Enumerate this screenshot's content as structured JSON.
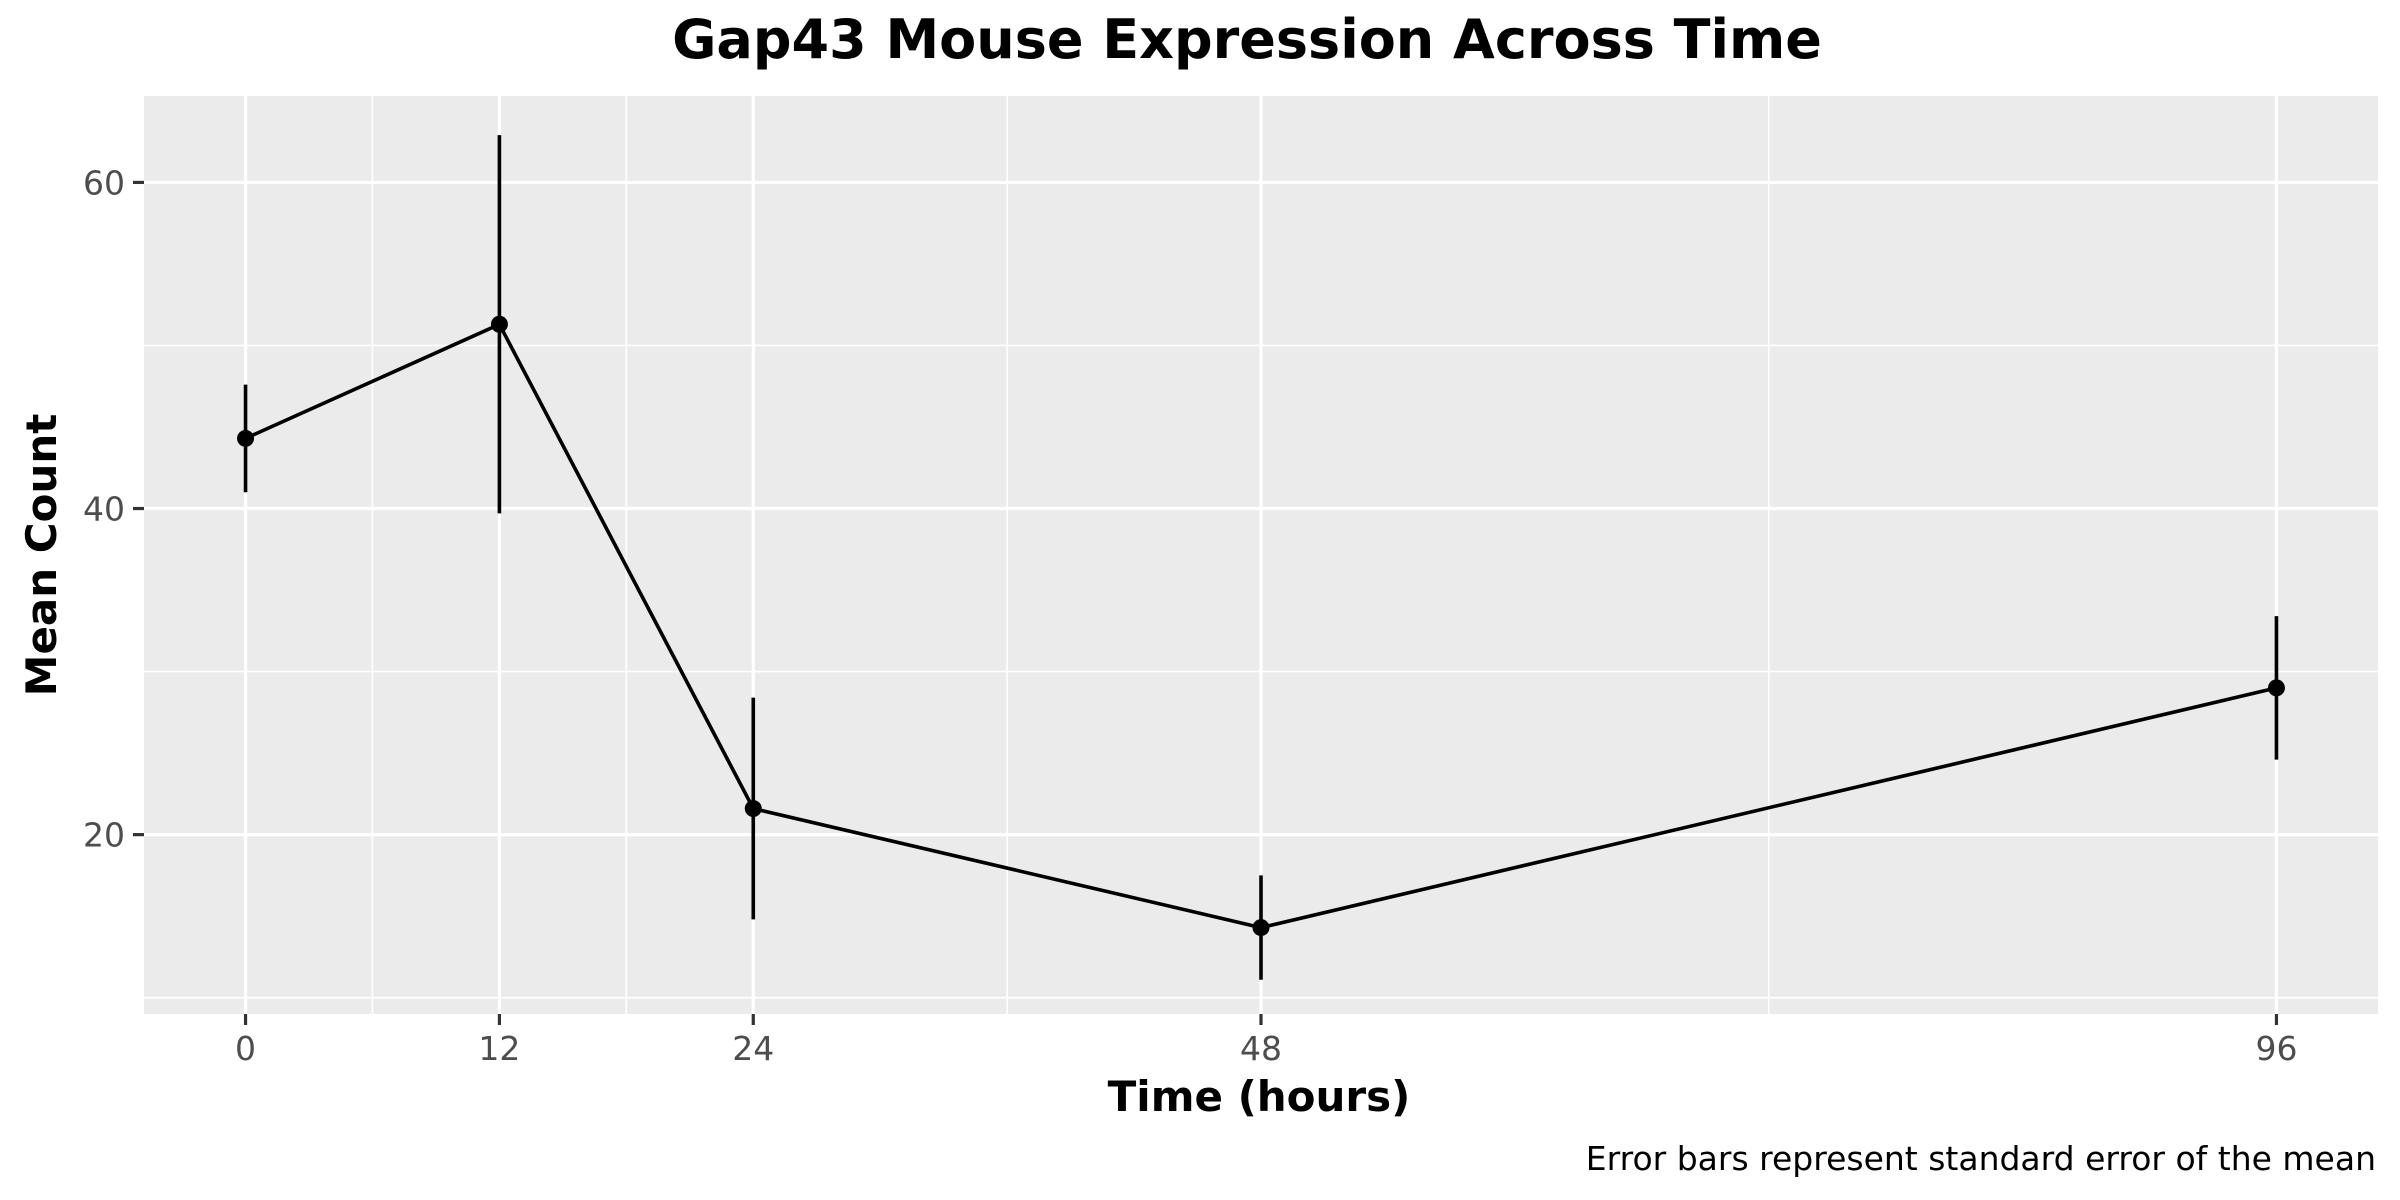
{
  "chart_data": {
    "type": "line",
    "title": "Gap43 Mouse Expression Across Time",
    "xlabel": "Time (hours)",
    "ylabel": "Mean Count",
    "caption": "Error bars represent standard error of the mean",
    "x_ticks": [
      "0",
      "12",
      "24",
      "48",
      "96"
    ],
    "y_ticks": [
      "20",
      "40",
      "60"
    ],
    "xlim": [
      -4.8,
      100.8
    ],
    "ylim": [
      9.0,
      65.3
    ],
    "grid": true,
    "series": [
      {
        "x": [
          0,
          12,
          24,
          48,
          96
        ],
        "y": [
          44.3,
          51.3,
          21.6,
          14.3,
          29.0
        ],
        "error_low": [
          41.0,
          39.7,
          14.8,
          11.1,
          24.6
        ],
        "error_high": [
          47.6,
          62.9,
          28.4,
          17.5,
          33.4
        ]
      }
    ],
    "colors": {
      "panel": "#ebebeb",
      "grid": "#ffffff",
      "line": "#000000"
    }
  }
}
